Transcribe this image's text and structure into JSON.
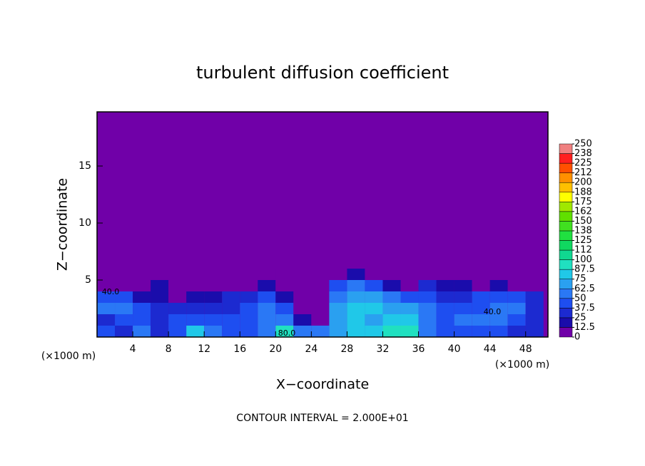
{
  "chart_data": {
    "type": "contour",
    "title": "turbulent diffusion coefficient",
    "x_label": "X−coordinate",
    "y_label": "Z−coordinate",
    "x_unit_left": "(×1000 m)",
    "x_unit_right": "(×1000 m)",
    "footnote": "CONTOUR INTERVAL = 2.000E+01",
    "annotations": [
      "40.0",
      "40.0",
      "80.0"
    ],
    "xlim": [
      0,
      50.5
    ],
    "ylim": [
      0,
      19.75
    ],
    "xticks": [
      4,
      8,
      12,
      16,
      20,
      24,
      28,
      32,
      36,
      40,
      44,
      48
    ],
    "yticks": [
      5,
      10,
      15
    ],
    "x": [
      1,
      3,
      5,
      7,
      9,
      11,
      13,
      15,
      17,
      19,
      21,
      23,
      25,
      27,
      29,
      31,
      33,
      35,
      37,
      39,
      41,
      43,
      45,
      47,
      49
    ],
    "y": [
      0.5,
      1.5,
      2.5,
      3.5,
      4.5,
      5.5
    ],
    "z": [
      [
        40,
        30,
        50,
        30,
        40,
        80,
        60,
        40,
        40,
        60,
        90,
        60,
        60,
        70,
        80,
        80,
        90,
        90,
        60,
        40,
        40,
        40,
        40,
        30,
        30
      ],
      [
        30,
        40,
        40,
        30,
        40,
        40,
        40,
        40,
        40,
        50,
        50,
        20,
        10,
        70,
        75,
        70,
        80,
        75,
        60,
        40,
        50,
        60,
        60,
        40,
        30
      ],
      [
        60,
        60,
        40,
        30,
        30,
        30,
        30,
        30,
        40,
        50,
        40,
        10,
        10,
        70,
        75,
        75,
        70,
        70,
        50,
        40,
        40,
        40,
        60,
        60,
        30
      ],
      [
        40,
        40,
        20,
        20,
        10,
        20,
        20,
        30,
        30,
        40,
        20,
        0,
        10,
        60,
        70,
        70,
        50,
        40,
        40,
        30,
        30,
        40,
        40,
        40,
        30
      ],
      [
        10,
        10,
        10,
        20,
        0,
        0,
        0,
        10,
        10,
        20,
        0,
        0,
        0,
        40,
        60,
        40,
        20,
        10,
        30,
        20,
        20,
        10,
        20,
        10,
        10
      ],
      [
        0,
        0,
        0,
        0,
        0,
        0,
        0,
        0,
        0,
        0,
        0,
        0,
        0,
        10,
        20,
        10,
        0,
        0,
        0,
        0,
        0,
        0,
        0,
        0,
        0
      ]
    ],
    "levels": [
      0,
      12.5,
      25,
      37.5,
      50,
      62.5,
      75,
      87.5,
      100,
      {
        "value": 112.5,
        "label": "112"
      },
      125,
      {
        "value": 137.5,
        "label": "138"
      },
      150,
      {
        "value": 162.5,
        "label": "162"
      },
      175,
      {
        "value": 187.5,
        "label": "188"
      },
      200,
      {
        "value": 212.5,
        "label": "212"
      },
      225,
      {
        "value": 237.5,
        "label": "238"
      },
      250
    ],
    "colors": [
      "#7000a8",
      "#1a0cab",
      "#1c2ad0",
      "#1e4ef0",
      "#2a78f5",
      "#2aa0f0",
      "#20c8e8",
      "#20e0c0",
      "#10d890",
      "#10d860",
      "#20e040",
      "#40e020",
      "#60e000",
      "#a0e800",
      "#ffff00",
      "#ffc000",
      "#ff9000",
      "#ff5000",
      "#ff2020",
      "#f08080"
    ]
  }
}
